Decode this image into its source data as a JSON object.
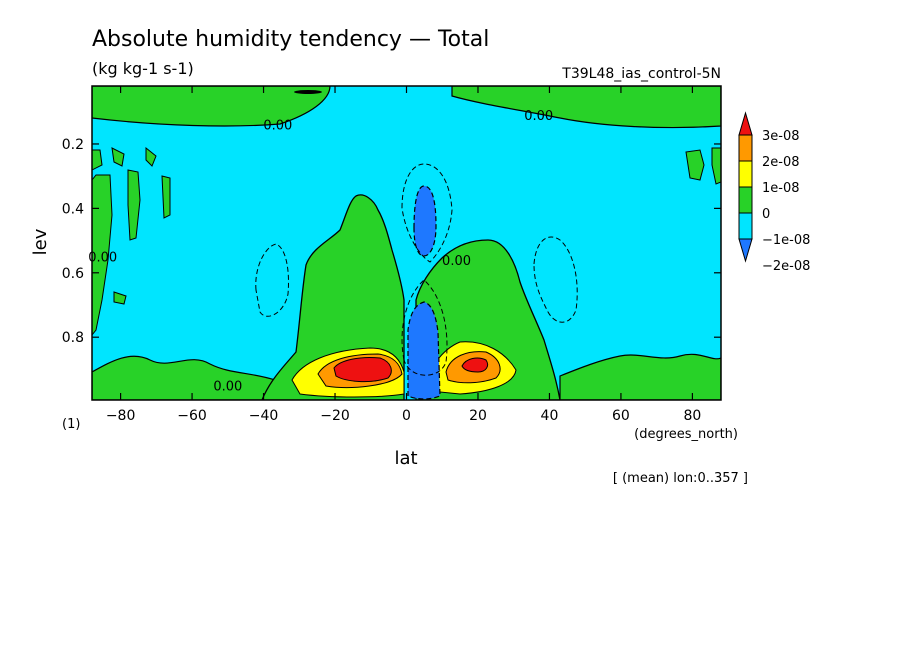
{
  "chart_data": {
    "type": "heatmap",
    "title": "Absolute humidity tendency — Total",
    "subtitle": "(kg kg-1 s-1)",
    "experiment": "T39L48_ias_control-5N",
    "xlabel": "lat",
    "xunits": "(degrees_north)",
    "ylabel": "lev",
    "yunits": "(1)",
    "averaging_note": "[ (mean) lon:0..357 ]",
    "xlim": [
      -88,
      88
    ],
    "ylim": [
      0.02,
      0.995
    ],
    "y_reversed": true,
    "x_ticks": [
      -80,
      -60,
      -40,
      -20,
      0,
      20,
      40,
      60,
      80
    ],
    "x_tick_labels": [
      "−80",
      "−60",
      "−40",
      "−20",
      "0",
      "20",
      "40",
      "60",
      "80"
    ],
    "y_ticks": [
      0.2,
      0.4,
      0.6,
      0.8
    ],
    "y_tick_labels": [
      "0.2",
      "0.4",
      "0.6",
      "0.8"
    ],
    "contour_labels": [
      {
        "text": "0.00",
        "lat": -36,
        "lev": 0.14
      },
      {
        "text": "0.00",
        "lat": 37,
        "lev": 0.11
      },
      {
        "text": "0.00",
        "lat": -85,
        "lev": 0.55
      },
      {
        "text": "0.00",
        "lat": -50,
        "lev": 0.95
      },
      {
        "text": "0.00",
        "lat": 14,
        "lev": 0.56
      }
    ],
    "colorbar": {
      "levels": [
        {
          "label": "3e-08",
          "color": "#e8e800"
        },
        {
          "label": "2e-08",
          "color": "#e8e800"
        },
        {
          "label": "1e-08",
          "color": "#e8e800"
        },
        {
          "label": "0",
          "color": "#e8e800"
        },
        {
          "label": "−1e-08",
          "color": "#e8e800"
        },
        {
          "label": "−2e-08",
          "color": "#e8e800"
        }
      ],
      "colors": [
        "#1e78ff",
        "#00e5ff",
        "#28d228",
        "#ffff00",
        "#ff9900",
        "#ee1111"
      ]
    },
    "regions": {
      "background": "#00e5ff",
      "positive_1": "#28d228",
      "positive_2": "#ffff00",
      "positive_3": "#ff9900",
      "positive_4": "#ee1111",
      "negative_1": "#1e78ff"
    }
  }
}
